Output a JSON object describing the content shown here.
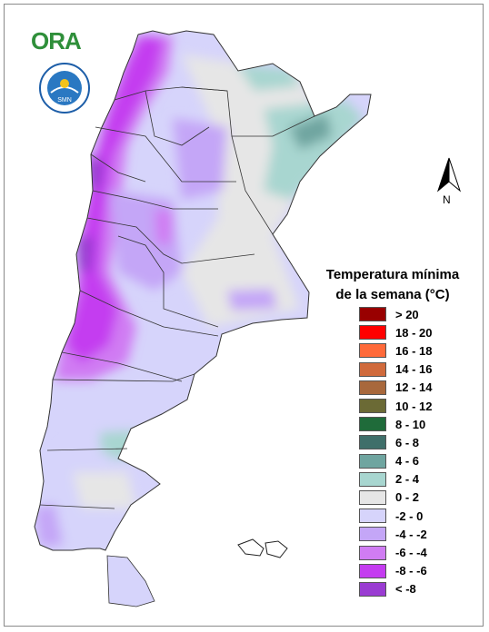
{
  "logos": {
    "ora_text": "ORA",
    "smn_ring_text": "SERVICIO METEOROLÓGICO NACIONAL · ARGENTINA",
    "smn_center_text": "SMN"
  },
  "north_arrow": {
    "label": "N"
  },
  "legend": {
    "title_line1": "Temperatura mínima",
    "title_line2": "de la semana (°C)",
    "classes": [
      {
        "label": "> 20",
        "color": "#990000"
      },
      {
        "label": "18 - 20",
        "color": "#ff0000"
      },
      {
        "label": "16 - 18",
        "color": "#ff6a3a"
      },
      {
        "label": "14 - 16",
        "color": "#d06a3c"
      },
      {
        "label": "12 - 14",
        "color": "#a8683c"
      },
      {
        "label": "10 - 12",
        "color": "#6b6a35"
      },
      {
        "label": "8 - 10",
        "color": "#1f6b3a"
      },
      {
        "label": "6 - 8",
        "color": "#3f6f6a"
      },
      {
        "label": "4 - 6",
        "color": "#6fa5a0"
      },
      {
        "label": "2 - 4",
        "color": "#a8d6d0"
      },
      {
        "label": "0 - 2",
        "color": "#e6e6e6"
      },
      {
        "label": "-2 - 0",
        "color": "#d6d4fb"
      },
      {
        "label": "-4 - -2",
        "color": "#c4a6f7"
      },
      {
        "label": "-6 - -4",
        "color": "#d07cf3"
      },
      {
        "label": "-8 - -6",
        "color": "#c43cf0"
      },
      {
        "label": "< -8",
        "color": "#9a3cd2"
      }
    ]
  }
}
